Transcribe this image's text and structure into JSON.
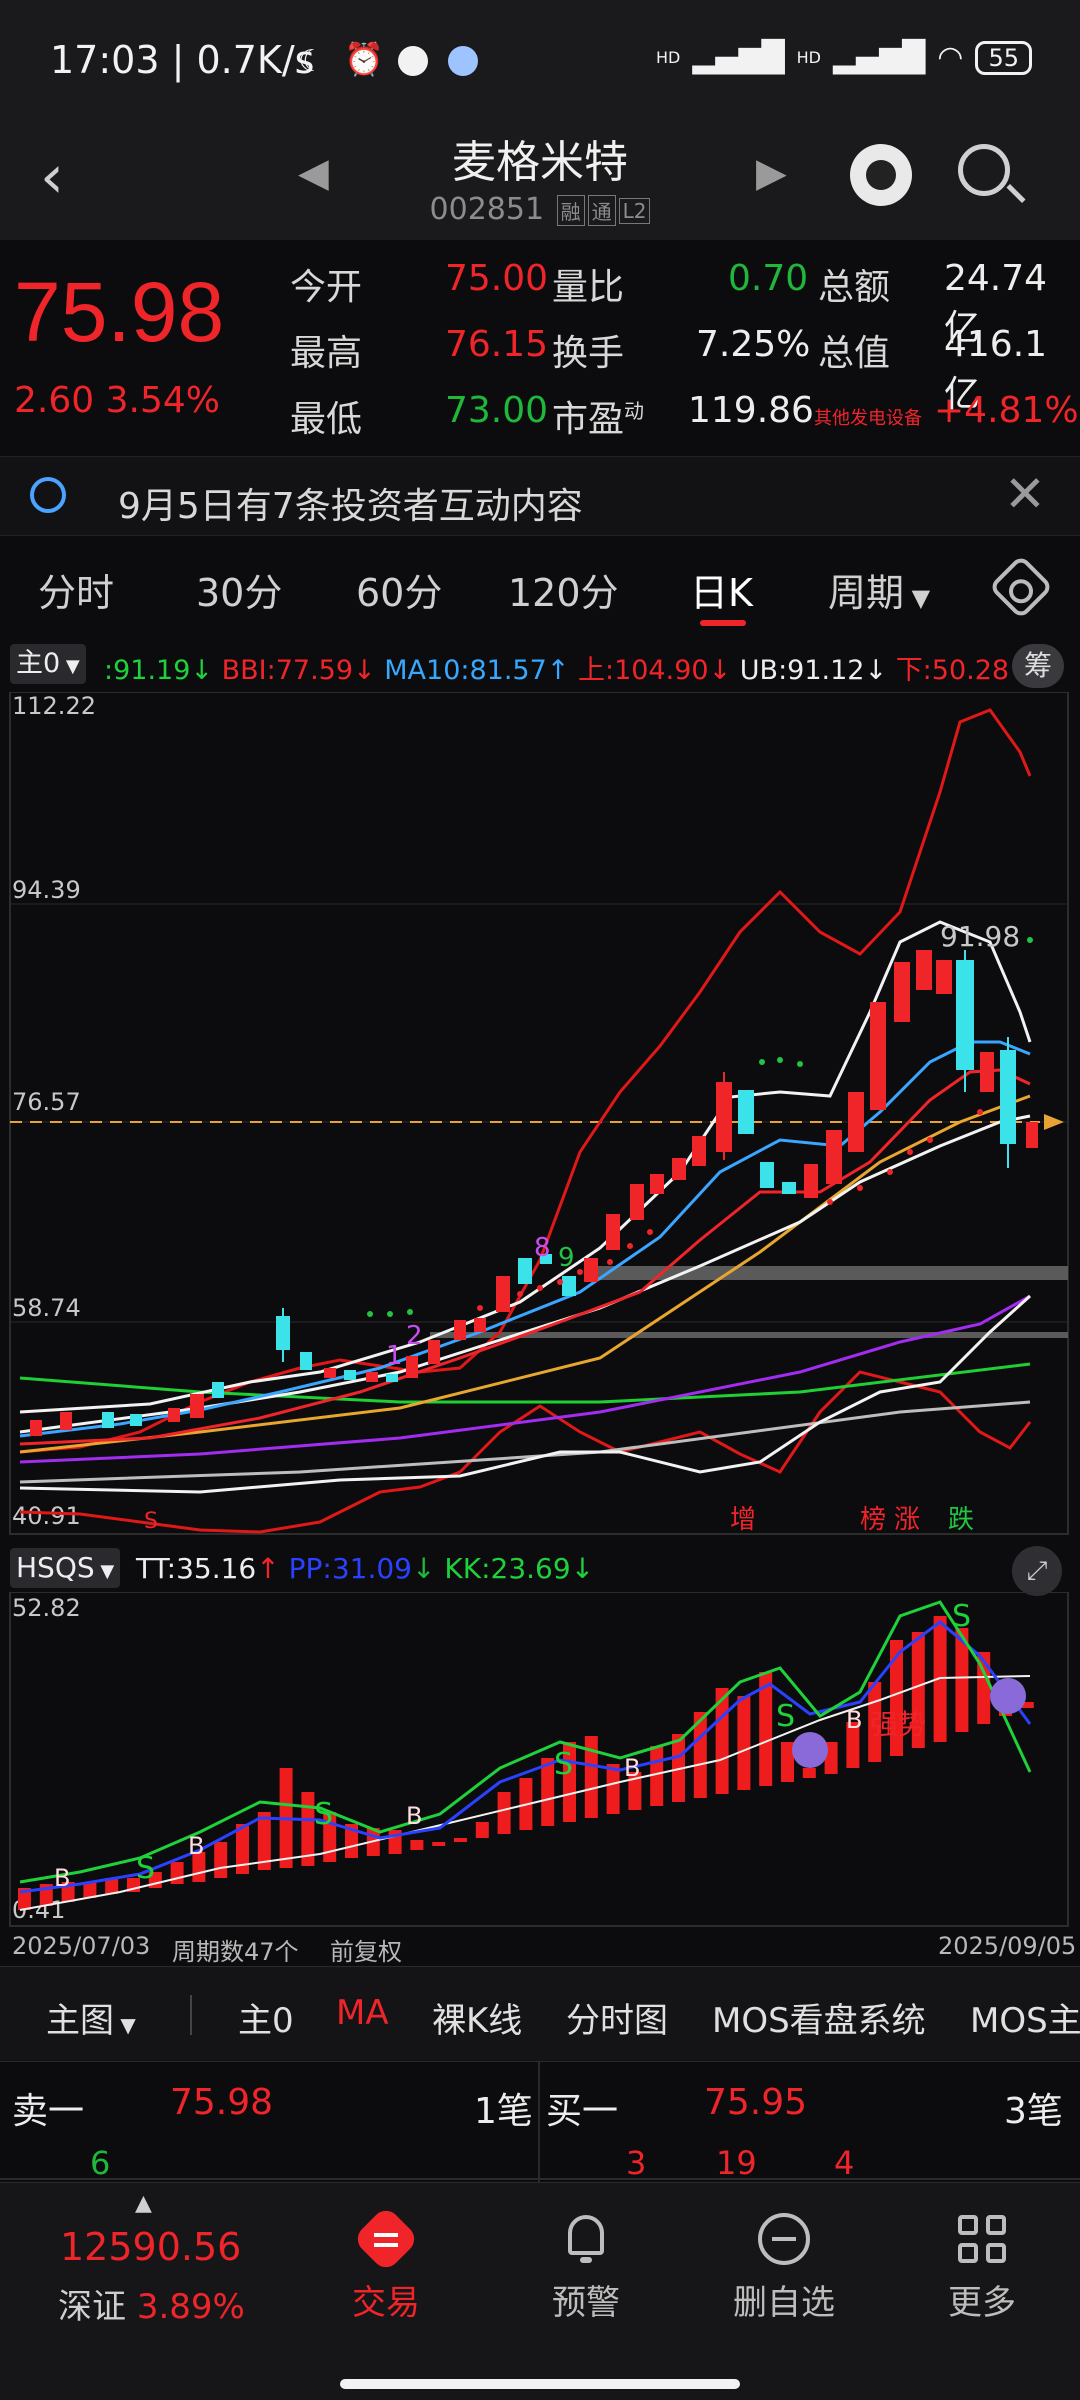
{
  "status_bar": {
    "time": "17:03 | 0.7K/s",
    "signal_hd1": "HD",
    "signal_hd2": "HD",
    "battery": "55"
  },
  "header": {
    "title": "麦格米特",
    "code": "002851",
    "tags": [
      "融",
      "通",
      "L2"
    ]
  },
  "quote": {
    "price": "75.98",
    "change": "2.60",
    "change_pct": "3.54%",
    "rows": [
      {
        "l1": "今开",
        "v1": "75.00",
        "l2": "量比",
        "v2": "0.70",
        "l3": "总额",
        "v3": "24.74亿"
      },
      {
        "l1": "最高",
        "v1": "76.15",
        "l2": "换手",
        "v2": "7.25%",
        "l3": "总值",
        "v3": "416.1亿"
      },
      {
        "l1": "最低",
        "v1": "73.00",
        "l2": "市盈",
        "v2": "119.86",
        "l3": "",
        "v3": "+4.81%"
      }
    ],
    "pe_superscript": "动",
    "sector": "其他发电设备"
  },
  "notice": {
    "text": "9月5日有7条投资者互动内容"
  },
  "tabs": [
    "分时",
    "30分",
    "60分",
    "120分",
    "日K",
    "周期"
  ],
  "main_indicator": {
    "selector": "主0",
    "values": [
      {
        "text": ":91.19",
        "color": "#1fd13a",
        "arrow": "↓"
      },
      {
        "text": "BBI:77.59",
        "color": "#f0252a",
        "arrow": "↓"
      },
      {
        "text": "MA10:81.57",
        "color": "#38a8ff",
        "arrow": "↑"
      },
      {
        "text": "上:104.90",
        "color": "#f0252a",
        "arrow": "↓"
      },
      {
        "text": "UB:91.12",
        "color": "#ededed",
        "arrow": "↓"
      },
      {
        "text": "下:50.28",
        "color": "#f0252a",
        "arrow": "↑"
      }
    ],
    "chip": "筹"
  },
  "kline": {
    "y_labels": [
      "112.22",
      "94.39",
      "76.57",
      "58.74",
      "40.91"
    ],
    "peak_label": "91.98",
    "markers": {
      "s": "S",
      "zeng": "增",
      "bang": "榜",
      "zhang": "涨",
      "die": "跌",
      "n1": "1",
      "n2": "2",
      "n8": "8",
      "n9": "9"
    }
  },
  "sub_indicator": {
    "selector": "HSQS",
    "tt": "TT:35.16",
    "pp": "PP:31.09",
    "kk": "KK:23.69",
    "y_top": "52.82",
    "y_bottom": "0.41",
    "label_s": "S",
    "label_b": "B",
    "label_trend": "强势"
  },
  "date_bar": {
    "start": "2025/07/03",
    "cycles": "周期数47个",
    "adjust": "前复权",
    "end": "2025/09/05"
  },
  "menu": [
    "主图",
    "主0",
    "MA",
    "裸K线",
    "分时图",
    "MOS看盘系统",
    "MOS主"
  ],
  "order_book": {
    "sell_label": "卖一",
    "sell_price": "75.98",
    "sell_count": "1笔",
    "sell_vol": "6",
    "buy_label": "买一",
    "buy_price": "75.95",
    "buy_count": "3笔",
    "buy_vols": [
      "3",
      "19",
      "4"
    ]
  },
  "bottom_nav": {
    "index_value": "12590.56",
    "index_name": "深证",
    "index_pct": "3.89%",
    "buttons": [
      "交易",
      "预警",
      "删自选",
      "更多"
    ]
  }
}
